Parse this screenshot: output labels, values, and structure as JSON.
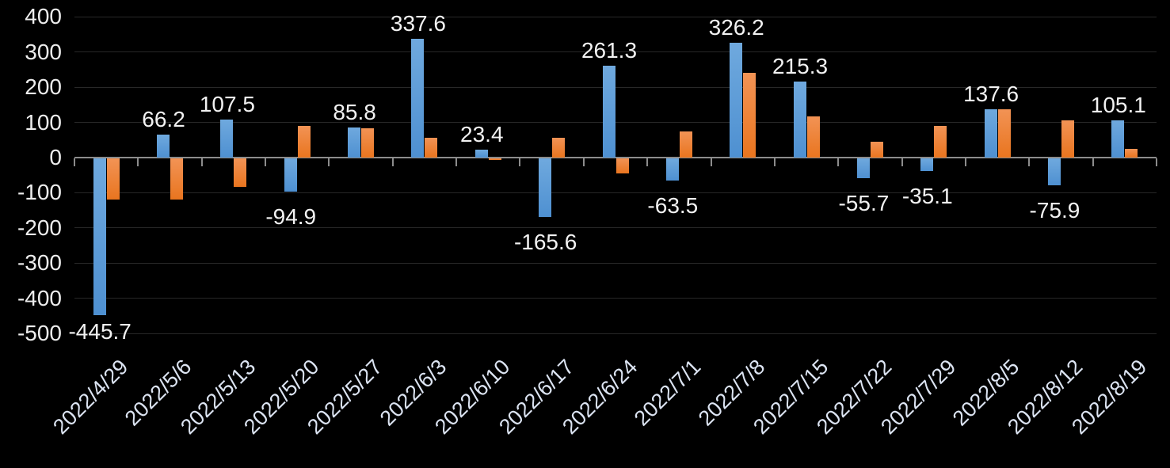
{
  "chart_data": {
    "type": "bar",
    "title": "",
    "legend": "none",
    "grid": true,
    "categories": [
      "2022/4/29",
      "2022/5/6",
      "2022/5/13",
      "2022/5/20",
      "2022/5/27",
      "2022/6/3",
      "2022/6/10",
      "2022/6/17",
      "2022/6/24",
      "2022/7/1",
      "2022/7/8",
      "2022/7/15",
      "2022/7/22",
      "2022/7/29",
      "2022/8/5",
      "2022/8/12",
      "2022/8/19"
    ],
    "series": [
      {
        "name": "blue-series",
        "color": "#5B9BD5",
        "data_labels_shown": true,
        "values": [
          -445.7,
          66.2,
          107.5,
          -94.9,
          85.8,
          337.6,
          23.4,
          -165.6,
          261.3,
          -63.5,
          326.2,
          215.3,
          -55.7,
          -35.1,
          137.6,
          -75.9,
          105.1
        ]
      },
      {
        "name": "orange-series",
        "color": "#ED7D31",
        "data_labels_shown": false,
        "values": [
          -116,
          -118,
          -80,
          89,
          84,
          56,
          -5,
          57,
          -43,
          75,
          241,
          118,
          45,
          90,
          138,
          105,
          25
        ]
      }
    ],
    "data_labels": [
      "-445.7",
      "66.2",
      "107.5",
      "-94.9",
      "85.8",
      "337.6",
      "23.4",
      "-165.6",
      "261.3",
      "-63.5",
      "326.2",
      "215.3",
      "-55.7",
      "-35.1",
      "137.6",
      "-75.9",
      "105.1"
    ],
    "y_axis": {
      "min": -500,
      "max": 400,
      "step": 100,
      "ticks": [
        400,
        300,
        200,
        100,
        0,
        -100,
        -200,
        -300,
        -400,
        -500
      ]
    },
    "x_axis": {
      "label_rotation_deg": 45
    },
    "colors": {
      "background": "#000000",
      "gridline": "#282828",
      "axis_line": "#8C8C8C",
      "blue_top": "#6FA9DE",
      "blue_bottom": "#4E90D1",
      "orange_top": "#F29355",
      "orange_bottom": "#E9751F",
      "y_tick_label": "#EDEDED",
      "x_tick_label": "#DCE4F2",
      "data_label": "#F2F2F2"
    }
  }
}
